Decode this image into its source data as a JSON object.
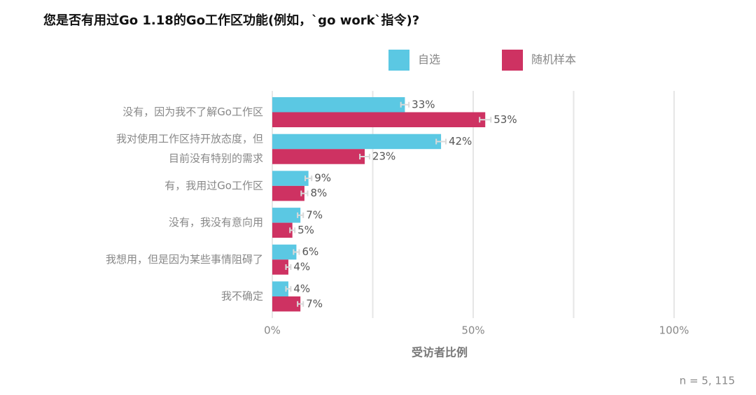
{
  "chart_data": {
    "type": "hbar",
    "title": "您是否有用过Go 1.18的Go工作区功能(例如，`go work`指令)?",
    "categories": [
      [
        "没有，因为我不了解Go工作区"
      ],
      [
        "我对使用工作区持开放态度，但",
        "目前没有特别的需求"
      ],
      [
        "有，我用过Go工作区"
      ],
      [
        "没有，我没有意向用"
      ],
      [
        "我想用，但是因为某些事情阻碍了"
      ],
      [
        "我不确定"
      ]
    ],
    "series": [
      {
        "name": "自选",
        "color": "#5bc8e3",
        "values": [
          33,
          42,
          9,
          7,
          6,
          4
        ],
        "value_labels": [
          "33%",
          "42%",
          "9%",
          "7%",
          "6%",
          "4%"
        ],
        "errors": [
          1,
          1.2,
          0.8,
          0.7,
          0.7,
          0.6
        ]
      },
      {
        "name": "随机样本",
        "color": "#ce3262",
        "values": [
          53,
          23,
          8,
          5,
          4,
          7
        ],
        "value_labels": [
          "53%",
          "23%",
          "8%",
          "5%",
          "4%",
          "7%"
        ],
        "errors": [
          1.4,
          1.2,
          0.8,
          0.6,
          0.6,
          0.7
        ]
      }
    ],
    "xlim": [
      0,
      100
    ],
    "xticks": [
      {
        "value": 0,
        "label": "0%"
      },
      {
        "value": 50,
        "label": "50%"
      },
      {
        "value": 100,
        "label": "100%"
      }
    ],
    "xgrid": [
      0,
      25,
      50,
      75,
      100
    ],
    "xlabel": "受访者比例",
    "note": "n =  5, 115"
  }
}
